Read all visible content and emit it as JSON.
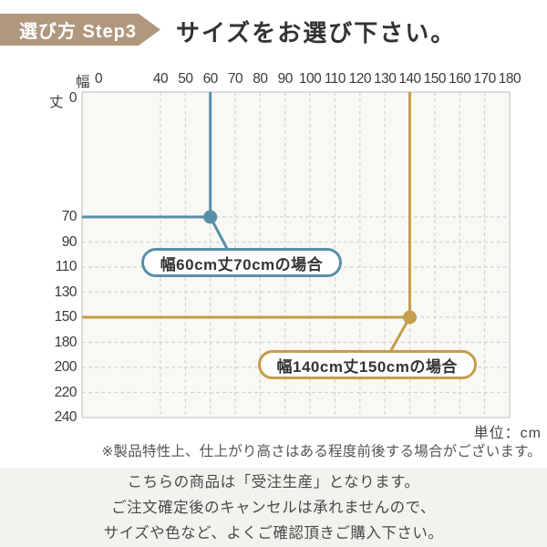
{
  "header": {
    "badge": "選び方 Step3",
    "title": "サイズをお選び下さい。"
  },
  "chart_data": {
    "type": "scatter",
    "description": "Size selection grid for made-to-order product (width x height in cm)",
    "x_axis": {
      "name": "幅",
      "ticks": [
        0,
        40,
        50,
        60,
        70,
        80,
        90,
        100,
        110,
        120,
        130,
        140,
        150,
        160,
        170,
        180
      ]
    },
    "y_axis": {
      "name": "丈",
      "ticks": [
        0,
        70,
        90,
        110,
        130,
        150,
        180,
        200,
        220,
        240
      ]
    },
    "grid": "dashed",
    "highlights": [
      {
        "width_cm": 60,
        "length_cm": 70,
        "color": "#5890a8",
        "label": "幅60cm丈70cmの場合"
      },
      {
        "width_cm": 140,
        "length_cm": 150,
        "color": "#c49d4e",
        "label": "幅140cm丈150cmの場合"
      }
    ]
  },
  "notes": {
    "unit": "単位：cm",
    "tolerance": "※製品特性上、仕上がり高さはある程度前後する場合がございます。"
  },
  "footer": {
    "lines": [
      "こちらの商品は「受注生産」となります。",
      "ご注文確定後のキャンセルは承れませんので、",
      "サイズや色など、よくご確認頂きご購入下さい。"
    ]
  },
  "colors": {
    "badge_bg": "#b1987d",
    "teal": "#5890a8",
    "gold": "#c49d4e",
    "grid_bg": "#f8f8f5",
    "grid_border": "#c8c8c6",
    "grid_dash": "#d5d5d3",
    "notice_bg": "#f2f2ef"
  }
}
